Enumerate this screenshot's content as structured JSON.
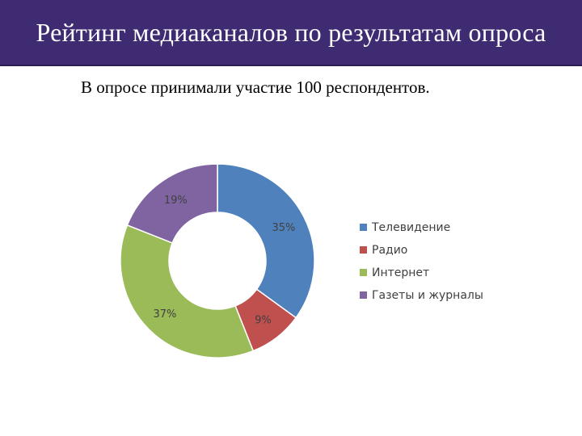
{
  "header": {
    "title": "Рейтинг медиаканалов по результатам опроса"
  },
  "subtitle": "В опросе принимали участие 100 респондентов.",
  "chart_data": {
    "type": "pie",
    "style": "donut",
    "title": "",
    "categories": [
      "Телевидение",
      "Радио",
      "Интернет",
      "Газеты и журналы"
    ],
    "values": [
      35,
      9,
      37,
      19
    ],
    "data_labels": [
      "35%",
      "9%",
      "37%",
      "19%"
    ],
    "colors": [
      "#4f81bd",
      "#c0504d",
      "#9bbb59",
      "#8064a2"
    ],
    "legend_position": "right"
  }
}
